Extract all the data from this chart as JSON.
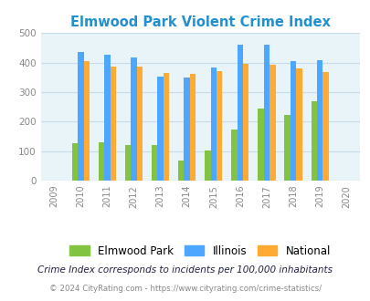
{
  "title": "Elmwood Park Violent Crime Index",
  "title_color": "#2090d0",
  "years_all": [
    2009,
    2010,
    2011,
    2012,
    2013,
    2014,
    2015,
    2016,
    2017,
    2018,
    2019,
    2020
  ],
  "data_years": [
    2010,
    2011,
    2012,
    2013,
    2014,
    2015,
    2016,
    2017,
    2018,
    2019
  ],
  "elmwood_park": [
    128,
    130,
    122,
    122,
    68,
    102,
    172,
    245,
    224,
    270
  ],
  "illinois": [
    435,
    428,
    418,
    352,
    348,
    382,
    462,
    462,
    405,
    408
  ],
  "national": [
    405,
    386,
    386,
    365,
    363,
    372,
    396,
    392,
    379,
    369
  ],
  "color_elmwood": "#82c341",
  "color_illinois": "#4da6ff",
  "color_national": "#ffaa33",
  "ylim": [
    0,
    500
  ],
  "yticks": [
    0,
    100,
    200,
    300,
    400,
    500
  ],
  "bg_color": "#e8f4f8",
  "grid_color": "#c5dde8",
  "footnote1": "Crime Index corresponds to incidents per 100,000 inhabitants",
  "footnote2": "© 2024 CityRating.com - https://www.cityrating.com/crime-statistics/",
  "footnote_color1": "#222244",
  "footnote_color2": "#888888",
  "bar_width": 0.22
}
